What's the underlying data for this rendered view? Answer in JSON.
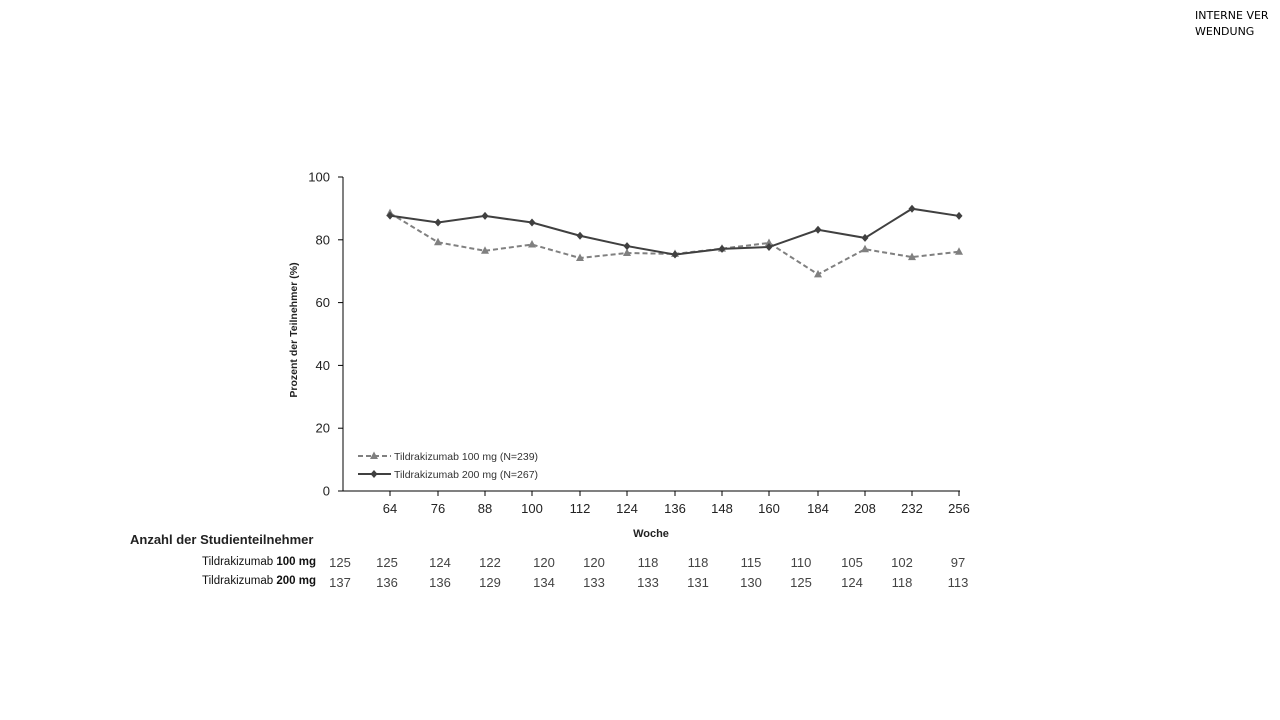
{
  "badge": {
    "text": "INTERNE VERWENDUNG"
  },
  "chart_data": {
    "type": "line",
    "title": "",
    "xlabel": "Woche",
    "ylabel": "Prozent der Teilnehmer (%)",
    "categories": [
      "64",
      "76",
      "88",
      "100",
      "112",
      "124",
      "136",
      "148",
      "160",
      "184",
      "208",
      "232",
      "256"
    ],
    "ylim": [
      0,
      100
    ],
    "yticks": [
      0,
      20,
      40,
      60,
      80,
      100
    ],
    "grid": false,
    "legend_position": "bottom-left",
    "series": [
      {
        "name": "Tildrakizumab 100 mg (N=239)",
        "style": "dashed",
        "marker": "triangle",
        "color": "#808080",
        "values": [
          88.5,
          79.2,
          76.5,
          78.5,
          74.2,
          75.8,
          75.5,
          77.2,
          79.0,
          69.0,
          77.0,
          74.5,
          76.2
        ]
      },
      {
        "name": "Tildrakizumab 200 mg (N=267)",
        "style": "solid",
        "marker": "diamond",
        "color": "#404040",
        "values": [
          87.7,
          85.5,
          87.6,
          85.5,
          81.3,
          78.0,
          75.3,
          77.1,
          77.7,
          83.2,
          80.6,
          89.9,
          87.6
        ]
      }
    ]
  },
  "risk_table": {
    "title": "Anzahl der Studienteilnehmer",
    "baseline_label": "",
    "rows": [
      {
        "label_prefix": "Tildrakizumab ",
        "label_dose": "100 mg",
        "values": [
          "125",
          "125",
          "124",
          "122",
          "120",
          "120",
          "118",
          "118",
          "115",
          "110",
          "105",
          "102",
          "97"
        ]
      },
      {
        "label_prefix": "Tildrakizumab ",
        "label_dose": "200 mg",
        "values": [
          "137",
          "136",
          "136",
          "129",
          "134",
          "133",
          "133",
          "131",
          "130",
          "125",
          "124",
          "118",
          "113"
        ]
      }
    ]
  }
}
